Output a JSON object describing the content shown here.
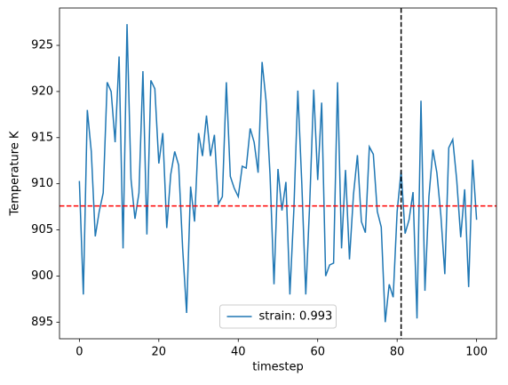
{
  "chart_data": {
    "type": "line",
    "xlabel": "timestep",
    "ylabel": "Temperature K",
    "x": [
      0,
      1,
      2,
      3,
      4,
      5,
      6,
      7,
      8,
      9,
      10,
      11,
      12,
      13,
      14,
      15,
      16,
      17,
      18,
      19,
      20,
      21,
      22,
      23,
      24,
      25,
      26,
      27,
      28,
      29,
      30,
      31,
      32,
      33,
      34,
      35,
      36,
      37,
      38,
      39,
      40,
      41,
      42,
      43,
      44,
      45,
      46,
      47,
      48,
      49,
      50,
      51,
      52,
      53,
      54,
      55,
      56,
      57,
      58,
      59,
      60,
      61,
      62,
      63,
      64,
      65,
      66,
      67,
      68,
      69,
      70,
      71,
      72,
      73,
      74,
      75,
      76,
      77,
      78,
      79,
      80,
      81,
      82,
      83,
      84,
      85,
      86,
      87,
      88,
      89,
      90,
      91,
      92,
      93,
      94,
      95,
      96,
      97,
      98,
      99,
      100
    ],
    "series": [
      {
        "name": "strain: 0.993",
        "color": "#1f77b4",
        "values": [
          910.3,
          898,
          918,
          913.5,
          904.3,
          907,
          909,
          921,
          920,
          914.5,
          923.8,
          903,
          927.3,
          910.5,
          906.2,
          909,
          922.2,
          904.5,
          921.2,
          920.3,
          912.2,
          915.5,
          905.2,
          911,
          913.5,
          912,
          903,
          896,
          909.7,
          905.9,
          915.5,
          913,
          917.4,
          913,
          915.3,
          907.8,
          908.6,
          921,
          910.8,
          909.5,
          908.6,
          911.9,
          911.7,
          916,
          914.5,
          911.2,
          923.2,
          919,
          911,
          899.1,
          911.6,
          907.1,
          910.2,
          898,
          907.2,
          920.1,
          910,
          898,
          908,
          920.2,
          910.4,
          918.8,
          900,
          901.2,
          901.4,
          921,
          903,
          911.5,
          901.8,
          908.8,
          913.1,
          905.9,
          904.7,
          914,
          913.2,
          907,
          905.3,
          895,
          899.1,
          897.7,
          907,
          911.4,
          904.6,
          906.1,
          909.1,
          895.4,
          919,
          898.4,
          908.6,
          913.7,
          911.2,
          906.6,
          900.2,
          913.9,
          914.8,
          910.4,
          904.2,
          909.4,
          898.8,
          912.6,
          906.1
        ]
      }
    ],
    "hline": {
      "value": 907.6,
      "color": "red"
    },
    "vline": {
      "value": 81,
      "color": "black"
    },
    "xlim": [
      -5,
      105
    ],
    "xticks": [
      0,
      20,
      40,
      60,
      80,
      100
    ],
    "ylim": [
      893.2,
      929.05
    ],
    "yticks": [
      895,
      900,
      905,
      910,
      915,
      920,
      925
    ],
    "legend": "lower center"
  }
}
